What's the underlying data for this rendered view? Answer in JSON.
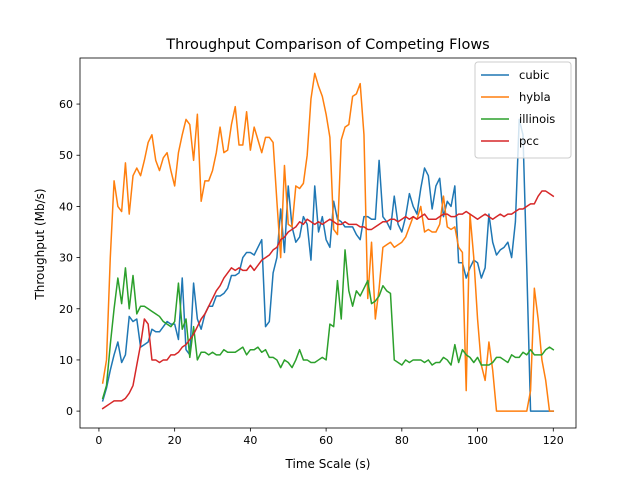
{
  "chart_data": {
    "type": "line",
    "title": "Throughput Comparison of Competing Flows",
    "xlabel": "Time Scale (s)",
    "ylabel": "Throughput (Mb/s)",
    "xlim": [
      -5,
      126
    ],
    "ylim": [
      -3.3,
      69.0
    ],
    "xticks": [
      0,
      20,
      40,
      60,
      80,
      100,
      120
    ],
    "yticks": [
      0,
      10,
      20,
      30,
      40,
      50,
      60
    ],
    "grid": false,
    "legend_position": "top-right",
    "x": [
      1,
      2,
      3,
      4,
      5,
      6,
      7,
      8,
      9,
      10,
      11,
      12,
      13,
      14,
      15,
      16,
      17,
      18,
      19,
      20,
      21,
      22,
      23,
      24,
      25,
      26,
      27,
      28,
      29,
      30,
      31,
      32,
      33,
      34,
      35,
      36,
      37,
      38,
      39,
      40,
      41,
      42,
      43,
      44,
      45,
      46,
      47,
      48,
      49,
      50,
      51,
      52,
      53,
      54,
      55,
      56,
      57,
      58,
      59,
      60,
      61,
      62,
      63,
      64,
      65,
      66,
      67,
      68,
      69,
      70,
      71,
      72,
      73,
      74,
      75,
      76,
      77,
      78,
      79,
      80,
      81,
      82,
      83,
      84,
      85,
      86,
      87,
      88,
      89,
      90,
      91,
      92,
      93,
      94,
      95,
      96,
      97,
      98,
      99,
      100,
      101,
      102,
      103,
      104,
      105,
      106,
      107,
      108,
      109,
      110,
      111,
      112,
      113,
      114,
      115,
      116,
      117,
      118,
      119,
      120
    ],
    "series": [
      {
        "name": "cubic",
        "color": "#1f77b4",
        "values": [
          2.0,
          4.5,
          8.0,
          11.0,
          13.5,
          9.5,
          11.0,
          18.5,
          17.5,
          18.0,
          12.5,
          13.0,
          13.5,
          16.0,
          15.5,
          15.5,
          16.5,
          17.5,
          17.0,
          17.0,
          14.0,
          26.0,
          12.0,
          11.0,
          25.0,
          18.0,
          16.0,
          19.0,
          20.5,
          20.5,
          22.5,
          22.5,
          23.0,
          24.0,
          26.5,
          26.5,
          27.0,
          30.0,
          31.0,
          31.0,
          30.5,
          32.0,
          33.5,
          16.5,
          17.5,
          27.0,
          30.0,
          39.5,
          31.0,
          44.0,
          36.0,
          33.0,
          34.0,
          38.0,
          36.5,
          29.5,
          44.0,
          35.0,
          38.0,
          33.5,
          32.0,
          41.0,
          37.5,
          37.0,
          36.0,
          36.0,
          36.0,
          34.5,
          33.5,
          38.0,
          38.0,
          37.5,
          37.5,
          49.0,
          38.0,
          37.0,
          35.5,
          42.0,
          36.5,
          35.0,
          38.0,
          42.5,
          40.0,
          38.5,
          43.5,
          47.5,
          46.0,
          39.5,
          44.0,
          45.5,
          38.0,
          41.0,
          40.0,
          44.0,
          29.0,
          29.0,
          26.0,
          28.0,
          29.5,
          29.0,
          26.0,
          28.0,
          38.5,
          33.0,
          30.5,
          31.5,
          32.0,
          33.0,
          30.0,
          37.0,
          57.0,
          54.0,
          28.0,
          0.0,
          0.0,
          0.0,
          0.0,
          0.0,
          0.0,
          0.0
        ]
      },
      {
        "name": "hybla",
        "color": "#ff7f0e",
        "values": [
          5.5,
          10.0,
          30.0,
          45.0,
          40.0,
          39.0,
          48.5,
          38.5,
          46.0,
          47.5,
          46.0,
          49.0,
          52.5,
          54.0,
          49.0,
          47.0,
          49.5,
          50.5,
          47.0,
          44.0,
          50.5,
          54.0,
          57.0,
          56.0,
          49.0,
          58.0,
          41.0,
          45.0,
          45.0,
          47.0,
          50.5,
          55.5,
          50.5,
          51.0,
          56.0,
          59.5,
          52.0,
          52.0,
          58.5,
          51.0,
          55.5,
          53.0,
          50.5,
          53.5,
          53.5,
          52.5,
          41.0,
          30.0,
          48.0,
          36.5,
          36.0,
          44.0,
          43.5,
          44.5,
          50.0,
          61.0,
          66.0,
          63.5,
          61.5,
          58.0,
          53.5,
          35.5,
          34.5,
          53.0,
          55.5,
          56.0,
          61.5,
          62.0,
          64.0,
          54.0,
          22.0,
          33.0,
          18.0,
          24.0,
          32.0,
          32.5,
          33.0,
          32.0,
          32.5,
          33.0,
          34.0,
          36.0,
          38.0,
          37.5,
          40.0,
          35.0,
          35.5,
          35.0,
          35.0,
          36.5,
          42.0,
          36.0,
          35.5,
          36.0,
          32.0,
          31.0,
          4.0,
          38.5,
          30.0,
          18.0,
          9.0,
          6.0,
          13.5,
          8.0,
          0.0,
          0.0,
          0.0,
          0.0,
          0.0,
          0.0,
          0.0,
          0.0,
          0.0,
          4.0,
          24.0,
          18.0,
          10.0,
          6.0,
          0.0,
          0.0
        ]
      },
      {
        "name": "illinois",
        "color": "#2ca02c",
        "values": [
          2.5,
          5.0,
          13.0,
          20.0,
          26.0,
          21.0,
          28.0,
          20.0,
          26.5,
          19.0,
          20.5,
          20.5,
          20.0,
          19.5,
          19.0,
          18.5,
          17.5,
          17.0,
          16.5,
          17.5,
          25.0,
          16.0,
          18.0,
          10.5,
          16.5,
          10.0,
          11.5,
          11.5,
          11.0,
          11.5,
          11.0,
          11.0,
          12.0,
          11.5,
          11.5,
          11.5,
          12.0,
          12.5,
          11.0,
          12.0,
          12.0,
          12.5,
          11.5,
          12.0,
          10.5,
          10.5,
          10.0,
          8.5,
          10.0,
          9.5,
          8.5,
          10.0,
          12.0,
          10.0,
          10.0,
          9.5,
          9.5,
          10.0,
          10.5,
          10.0,
          17.0,
          16.5,
          25.5,
          18.0,
          31.5,
          23.5,
          20.5,
          23.5,
          22.5,
          24.0,
          25.5,
          21.0,
          21.5,
          22.5,
          24.5,
          23.5,
          23.0,
          10.0,
          9.5,
          9.0,
          10.0,
          9.5,
          10.0,
          10.0,
          10.0,
          9.5,
          10.0,
          9.0,
          9.5,
          9.5,
          10.5,
          10.0,
          9.0,
          13.0,
          9.5,
          12.0,
          11.0,
          10.5,
          9.5,
          10.5,
          9.0,
          9.0,
          9.0,
          9.5,
          10.5,
          10.5,
          10.0,
          9.5,
          11.0,
          10.5,
          10.5,
          11.5,
          11.0,
          12.0,
          11.0,
          11.0,
          11.0,
          12.0,
          12.5,
          12.0
        ]
      },
      {
        "name": "pcc",
        "color": "#d62728",
        "values": [
          0.5,
          1.0,
          1.5,
          2.0,
          2.0,
          2.0,
          2.5,
          3.5,
          5.0,
          9.0,
          13.0,
          18.0,
          17.0,
          10.0,
          10.0,
          9.5,
          10.0,
          10.0,
          11.0,
          11.0,
          11.5,
          12.5,
          13.0,
          14.0,
          15.0,
          16.5,
          18.0,
          19.0,
          20.5,
          22.0,
          23.5,
          24.5,
          26.0,
          27.0,
          28.0,
          27.5,
          28.0,
          27.5,
          27.5,
          28.5,
          27.5,
          28.5,
          29.5,
          30.0,
          30.5,
          31.5,
          32.0,
          33.5,
          34.0,
          35.0,
          35.5,
          36.0,
          37.0,
          36.5,
          37.5,
          37.0,
          36.5,
          37.0,
          36.5,
          37.0,
          37.5,
          37.0,
          36.5,
          36.5,
          37.0,
          36.5,
          36.5,
          36.5,
          36.0,
          36.0,
          35.5,
          35.5,
          36.0,
          36.5,
          37.0,
          37.0,
          37.5,
          37.5,
          37.0,
          37.5,
          38.0,
          37.5,
          38.0,
          37.5,
          38.0,
          38.5,
          37.5,
          37.5,
          37.5,
          38.0,
          38.5,
          38.5,
          38.0,
          38.0,
          38.5,
          38.5,
          39.0,
          38.5,
          38.0,
          37.5,
          38.0,
          38.5,
          38.0,
          37.5,
          38.0,
          38.5,
          38.0,
          38.5,
          38.5,
          39.0,
          39.5,
          39.5,
          40.0,
          40.5,
          40.5,
          42.0,
          43.0,
          43.0,
          42.5,
          42.0
        ]
      }
    ]
  }
}
